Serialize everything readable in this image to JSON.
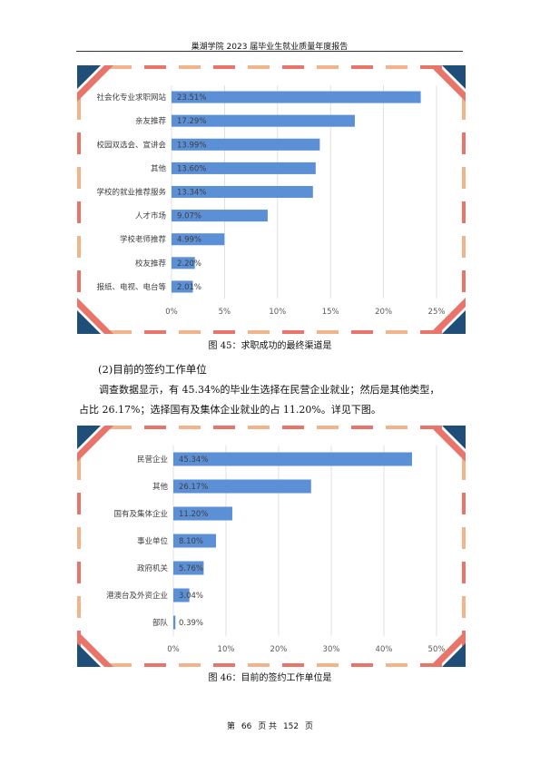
{
  "header": {
    "title": "巢湖学院 2023 届毕业生就业质量年度报告"
  },
  "figure45": {
    "caption": "图 45：求职成功的最终渠道是",
    "chart_data": {
      "type": "bar",
      "orientation": "horizontal",
      "categories": [
        "社会化专业求职网站",
        "亲友推荐",
        "校园双选会、宣讲会",
        "其他",
        "学校的就业推荐服务",
        "人才市场",
        "学校老师推荐",
        "校友推荐",
        "报纸、电视、电台等"
      ],
      "values": [
        23.51,
        17.29,
        13.99,
        13.6,
        13.34,
        9.07,
        4.99,
        2.2,
        2.01
      ],
      "value_labels": [
        "23.51%",
        "17.29%",
        "13.99%",
        "13.60%",
        "13.34%",
        "9.07%",
        "4.99%",
        "2.20%",
        "2.01%"
      ],
      "xlim": [
        0,
        25
      ],
      "ticks": [
        "0%",
        "5%",
        "10%",
        "15%",
        "20%",
        "25%"
      ],
      "grid": true,
      "bar_color": "#5b8fd6"
    }
  },
  "section": {
    "title": "(2)目前的签约工作单位",
    "para_line1": "调查数据显示，有 45.34%的毕业生选择在民营企业就业；然后是其他类型，",
    "para_line2": "占比 26.17%；选择国有及集体企业就业的占 11.20%。详见下图。"
  },
  "figure46": {
    "caption": "图 46：目前的签约工作单位是",
    "chart_data": {
      "type": "bar",
      "orientation": "horizontal",
      "categories": [
        "民营企业",
        "其他",
        "国有及集体企业",
        "事业单位",
        "政府机关",
        "港澳台及外资企业",
        "部队"
      ],
      "values": [
        45.34,
        26.17,
        11.2,
        8.1,
        5.76,
        3.04,
        0.39
      ],
      "value_labels": [
        "45.34%",
        "26.17%",
        "11.20%",
        "8.10%",
        "5.76%",
        "3.04%",
        "0.39%"
      ],
      "xlim": [
        0,
        50
      ],
      "ticks": [
        "0%",
        "10%",
        "20%",
        "30%",
        "40%",
        "50%"
      ],
      "grid": true,
      "bar_color": "#5b8fd6"
    }
  },
  "footer": {
    "prefix": "第",
    "page": "66",
    "mid": "页 共",
    "total": "152",
    "suffix": "页"
  },
  "colors": {
    "frame_navy": "#1f4e79",
    "frame_coral": "#e8746a",
    "frame_peach": "#f2b48a"
  }
}
